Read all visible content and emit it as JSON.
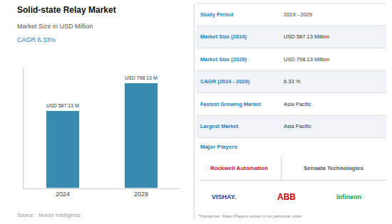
{
  "chart_data": {
    "type": "bar",
    "title": "Solid-state Relay Market",
    "subtitle": "Market Size in USD Million",
    "categories": [
      "2024",
      "2029"
    ],
    "values": [
      587.13,
      798.13
    ],
    "value_labels": [
      "USD 587.13 M",
      "USD 798.13 M"
    ],
    "data_labels": true,
    "color": "#3a8bb0",
    "ylim": [
      0,
      920
    ],
    "tick_labels": "x",
    "grid": false,
    "annotations": [
      "CAGR 6.33%",
      "Source :  Mordor Intelligence",
      "Major Players",
      "*Disclaimer: Major Players sorted in no particular order"
    ],
    "table": [
      [
        "Study Period",
        "2019 - 2029"
      ],
      [
        "Market Size (2024)",
        "USD 587.13 Million"
      ],
      [
        "Market Size (2029)",
        "USD 798.13 Million"
      ],
      [
        "CAGR (2024 - 2029)",
        "6.33 %"
      ],
      [
        "Fastest Growing Market",
        "Asia Pacific"
      ],
      [
        "Largest Market",
        "Asia Pacific"
      ]
    ],
    "players": [
      "Rockwell Automation",
      "Sensata Technologies",
      "VISHAY.",
      "ABB",
      "infineon"
    ]
  }
}
